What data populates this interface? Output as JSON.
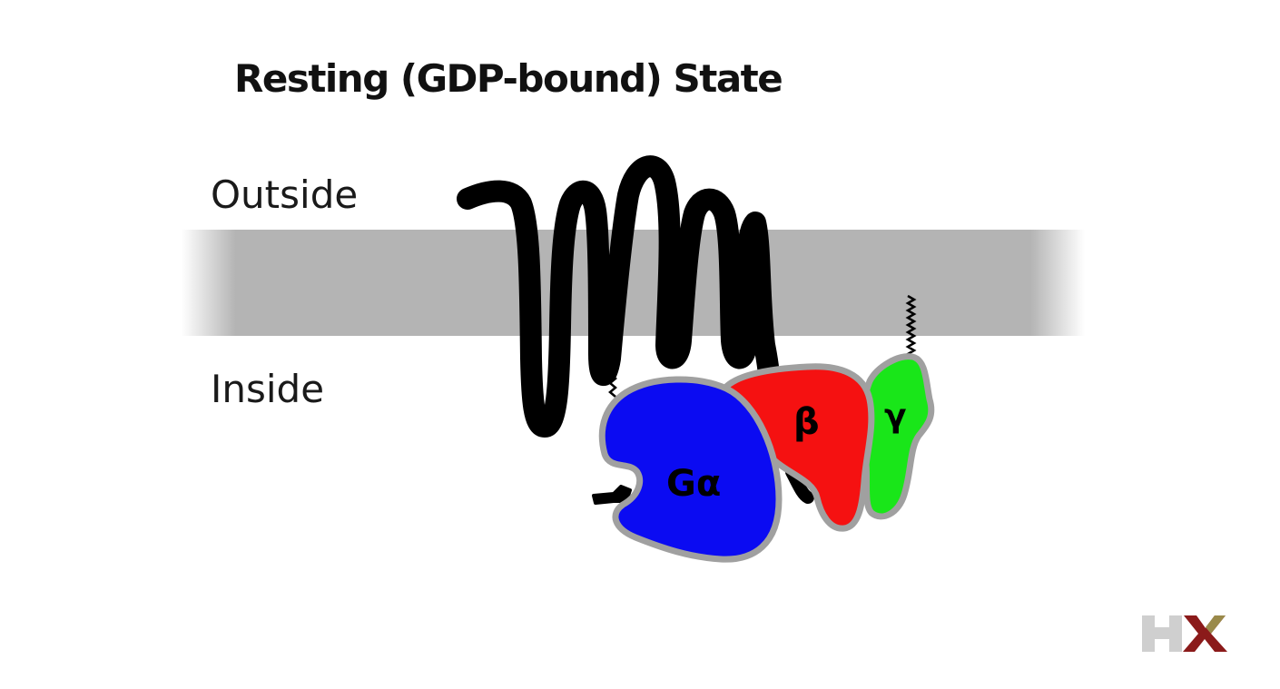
{
  "title": "Resting (GDP-bound) State",
  "regions": {
    "outside": "Outside",
    "inside": "Inside"
  },
  "subunits": {
    "alpha": {
      "label": "Gα",
      "color": "#0b0bf2"
    },
    "beta": {
      "label": "β",
      "color": "#f51111"
    },
    "gamma": {
      "label": "γ",
      "color": "#19e619"
    }
  },
  "colors": {
    "membrane": "#b4b4b4",
    "receptor": "#000000",
    "outline": "#a0a0a0",
    "logo_h": "#cfcfcf",
    "logo_x": "#8b1a1a",
    "logo_x_accent": "#9a8a4a"
  },
  "logo": {
    "icon": "hx-logo",
    "text": "HX"
  }
}
